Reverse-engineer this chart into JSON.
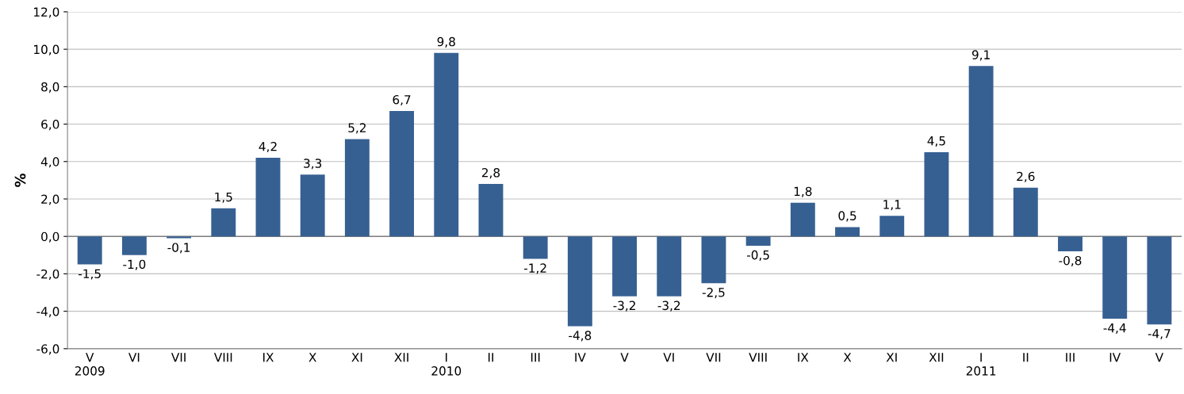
{
  "chart_data": {
    "type": "bar",
    "ylabel": "%",
    "categories": [
      "V\n2009",
      "VI",
      "VII",
      "VIII",
      "IX",
      "X",
      "XI",
      "XII",
      "I\n2010",
      "II",
      "III",
      "IV",
      "V",
      "VI",
      "VII",
      "VIII",
      "IX",
      "X",
      "XI",
      "XII",
      "I\n2011",
      "II",
      "III",
      "IV",
      "V"
    ],
    "values": [
      -1.5,
      -1.0,
      -0.1,
      1.5,
      4.2,
      3.3,
      5.2,
      6.7,
      9.8,
      2.8,
      -1.2,
      -4.8,
      -3.2,
      -3.2,
      -2.5,
      -0.5,
      1.8,
      0.5,
      1.1,
      4.5,
      9.1,
      2.6,
      -0.8,
      -4.4,
      -4.7
    ],
    "value_labels": [
      "-1,5",
      "-1,0",
      "-0,1",
      "1,5",
      "4,2",
      "3,3",
      "5,2",
      "6,7",
      "9,8",
      "2,8",
      "-1,2",
      "-4,8",
      "-3,2",
      "-3,2",
      "-2,5",
      "-0,5",
      "1,8",
      "0,5",
      "1,1",
      "4,5",
      "9,1",
      "2,6",
      "-0,8",
      "-4,4",
      "-4,7"
    ],
    "color": "#376092",
    "ylim": [
      -6,
      12
    ],
    "yticks": [
      {
        "value": -6,
        "label": "-6,0"
      },
      {
        "value": -4,
        "label": "-4,0"
      },
      {
        "value": -2,
        "label": "-2,0"
      },
      {
        "value": 0,
        "label": "0,0"
      },
      {
        "value": 2,
        "label": "2,0"
      },
      {
        "value": 4,
        "label": "4,0"
      },
      {
        "value": 6,
        "label": "6,0"
      },
      {
        "value": 8,
        "label": "8,0"
      },
      {
        "value": 10,
        "label": "10,0"
      },
      {
        "value": 12,
        "label": "12,0"
      }
    ],
    "grid": "y",
    "legend": false
  }
}
